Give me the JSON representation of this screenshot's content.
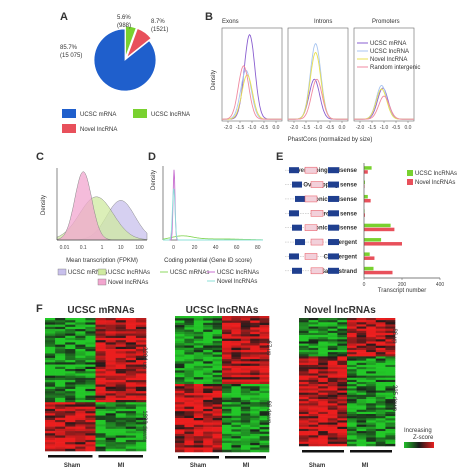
{
  "chart_data": [
    {
      "panel": "A",
      "type": "pie",
      "slices": [
        {
          "name": "UCSC mRNA",
          "percent": 85.7,
          "count": "15 075",
          "color": "#1f5fcc"
        },
        {
          "name": "UCSC lncRNA",
          "percent": 5.6,
          "count": "988",
          "color": "#79d12f"
        },
        {
          "name": "Novel lncRNA",
          "percent": 8.7,
          "count": "1521",
          "color": "#e8505b"
        }
      ],
      "labels": {
        "mrna_pct": "85.7%",
        "mrna_cnt": "(15 075)",
        "ucsc_pct": "5.6%",
        "ucsc_cnt": "(988)",
        "novel_pct": "8.7%",
        "novel_cnt": "(1521)"
      },
      "legend": [
        "UCSC mRNA",
        "UCSC lncRNA",
        "Novel lncRNA"
      ]
    },
    {
      "panel": "B",
      "type": "line",
      "facets": [
        "Exons",
        "Introns",
        "Promoters"
      ],
      "xlabel": "PhastCons (normalized by size)",
      "ylabel": "Density",
      "x_ticks": [
        "-2.0",
        "-1.5",
        "-1.0",
        "-0.5",
        "0.0"
      ],
      "legend": [
        "UCSC mRNA",
        "UCSC lncRNA",
        "Novel lncRNA",
        "Random intergenic"
      ],
      "series": [
        {
          "name": "UCSC mRNA",
          "color": "#8a5fd0",
          "peaks": [
            [
              -1.1,
              0.95
            ],
            [
              -1.15,
              0.45
            ],
            [
              -1.05,
              0.35
            ]
          ]
        },
        {
          "name": "UCSC lncRNA",
          "color": "#a8c5f0",
          "peaks": [
            [
              -1.25,
              0.55
            ],
            [
              -1.1,
              0.85
            ],
            [
              -1.1,
              0.38
            ]
          ]
        },
        {
          "name": "Novel lncRNA",
          "color": "#e8e050",
          "peaks": [
            [
              -1.2,
              0.5
            ],
            [
              -1.1,
              0.75
            ],
            [
              -1.1,
              0.34
            ]
          ]
        },
        {
          "name": "Random intergenic",
          "color": "#f08aa0",
          "peaks": [
            [
              -1.35,
              0.6
            ],
            [
              -1.05,
              0.45
            ],
            [
              -1.0,
              0.26
            ]
          ]
        }
      ]
    },
    {
      "panel": "C",
      "type": "area",
      "xlabel": "Mean transcription (FPKM)",
      "ylabel": "Density",
      "x_ticks": [
        "0.01",
        "0.1",
        "1",
        "10",
        "100"
      ],
      "legend": [
        "UCSC mRNAs",
        "UCSC lncRNAs",
        "Novel lncRNAs"
      ],
      "series": [
        {
          "name": "UCSC mRNAs",
          "color": "#c8c0ec",
          "peak_log10": 1.0,
          "height": 0.55,
          "width": 0.75
        },
        {
          "name": "UCSC lncRNAs",
          "color": "#cfeaa0",
          "peak_log10": -0.3,
          "height": 0.6,
          "width": 0.9
        },
        {
          "name": "Novel lncRNAs",
          "color": "#f2a6cf",
          "peak_log10": -1.0,
          "height": 0.95,
          "width": 0.45
        }
      ]
    },
    {
      "panel": "D",
      "type": "line",
      "xlabel": "Coding potential (Gene ID score)",
      "ylabel": "Density",
      "x_ticks": [
        "0",
        "20",
        "40",
        "60",
        "80"
      ],
      "legend": [
        "UCSC mRNAs",
        "UCSC lncRNAs",
        "Novel lncRNAs"
      ],
      "series": [
        {
          "name": "UCSC mRNAs",
          "color": "#8cd860"
        },
        {
          "name": "UCSC lncRNAs",
          "color": "#c86fd0"
        },
        {
          "name": "Novel lncRNAs",
          "color": "#8ce0d8"
        }
      ]
    },
    {
      "panel": "E",
      "type": "bar",
      "categories": [
        "Overlapping antisense",
        "Overlapping sense",
        "Intronic antisense",
        "Intronic sense",
        "Exonic antisense",
        "Divergent",
        "Convergent",
        "Same strand"
      ],
      "series": [
        {
          "name": "UCSC lncRNAs",
          "color": "#79d12f",
          "values": [
            40,
            5,
            20,
            3,
            140,
            90,
            30,
            50
          ]
        },
        {
          "name": "Novel lncRNAs",
          "color": "#e8505b",
          "values": [
            20,
            3,
            35,
            5,
            160,
            200,
            55,
            150
          ]
        }
      ],
      "xlabel": "Transcript number",
      "x_ticks": [
        "0",
        "200",
        "400"
      ],
      "xlim": [
        0,
        400
      ]
    },
    {
      "panel": "F",
      "type": "heatmap",
      "groups": [
        {
          "title": "UCSC mRNAs",
          "up": "2204 up",
          "down": "1338 down"
        },
        {
          "title": "UCSC lncRNAs",
          "up": "67 up",
          "down": "66 down"
        },
        {
          "title": "Novel lncRNAs",
          "up": "86 up",
          "down": "225 down"
        }
      ],
      "xlabels": [
        "Sham",
        "MI"
      ],
      "colorbar": {
        "label1": "Increasing",
        "label2": "Z-score",
        "low": "#22c02a",
        "mid": "#1a1a1a",
        "high": "#e82020"
      }
    }
  ],
  "letters": [
    "A",
    "B",
    "C",
    "D",
    "E",
    "F"
  ]
}
